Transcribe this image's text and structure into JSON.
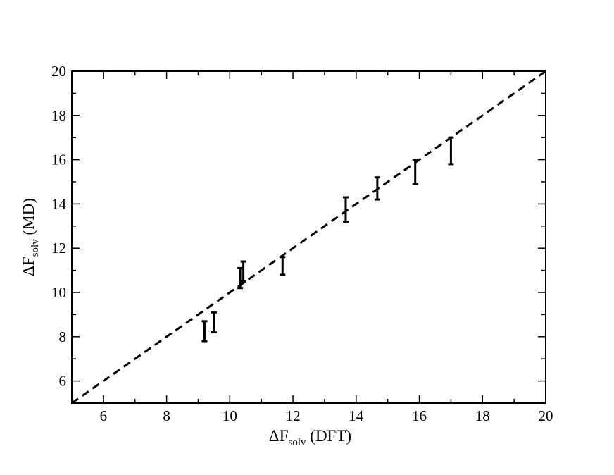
{
  "chart_data": {
    "type": "scatter",
    "title": "",
    "xlabel": {
      "main": "ΔF",
      "sub": "solv",
      "suffix": " (DFT)"
    },
    "ylabel": {
      "main": "ΔF",
      "sub": "solv",
      "suffix": " (MD)"
    },
    "xlim": [
      5,
      20
    ],
    "ylim": [
      5,
      20
    ],
    "xticks": [
      6,
      8,
      10,
      12,
      14,
      16,
      18,
      20
    ],
    "yticks": [
      6,
      8,
      10,
      12,
      14,
      16,
      18,
      20
    ],
    "grid": false,
    "reference_line": {
      "style": "dashed",
      "from": [
        5,
        5
      ],
      "to": [
        20,
        20
      ],
      "color": "#000000"
    },
    "series": [
      {
        "marker": "none",
        "color": "#000000",
        "points": [
          {
            "x": 9.2,
            "y_low": 7.8,
            "y_high": 8.7
          },
          {
            "x": 9.5,
            "y_low": 8.2,
            "y_high": 9.1
          },
          {
            "x": 10.33,
            "y_low": 10.2,
            "y_high": 11.1
          },
          {
            "x": 10.43,
            "y_low": 10.5,
            "y_high": 11.4
          },
          {
            "x": 11.67,
            "y_low": 10.8,
            "y_high": 11.6
          },
          {
            "x": 13.67,
            "y_low": 13.2,
            "y_high": 14.3
          },
          {
            "x": 14.67,
            "y_low": 14.2,
            "y_high": 15.2
          },
          {
            "x": 15.87,
            "y_low": 14.9,
            "y_high": 16.0
          },
          {
            "x": 17.0,
            "y_low": 15.8,
            "y_high": 17.0
          }
        ]
      }
    ]
  }
}
